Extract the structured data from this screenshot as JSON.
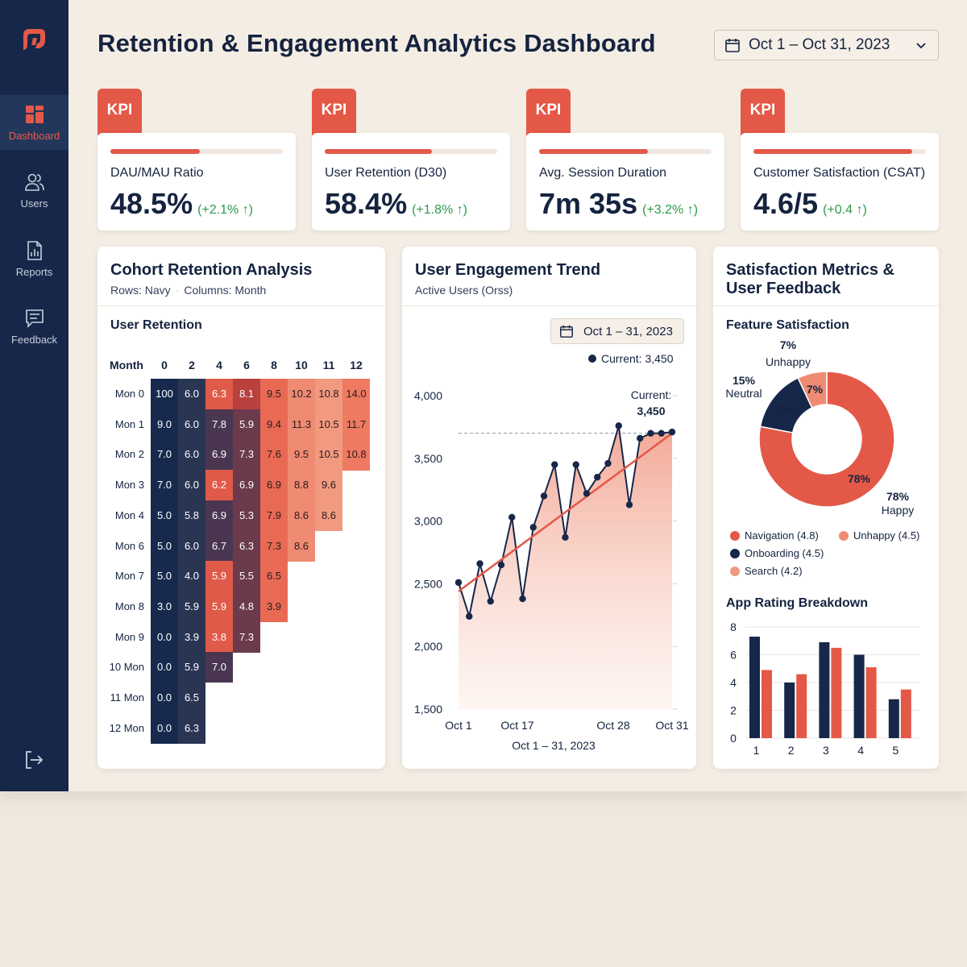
{
  "app": {
    "title": "Retention & Engagement Analytics Dashboard",
    "date_range": "Oct 1 – Oct 31, 2023"
  },
  "colors": {
    "navy": "#16274a",
    "coral": "#e45847",
    "salmon": "#ef8b73",
    "positive": "#2e9a4a"
  },
  "sidebar": {
    "logo_icon": "app-logo-icon",
    "items": [
      {
        "label": "Dashboard",
        "icon": "dashboard-icon",
        "active": true
      },
      {
        "label": "Users",
        "icon": "users-icon",
        "active": false
      },
      {
        "label": "Reports",
        "icon": "reports-icon",
        "active": false
      },
      {
        "label": "Feedback",
        "icon": "feedback-icon",
        "active": false
      }
    ],
    "logout_icon": "logout-icon"
  },
  "kpis": [
    {
      "tag": "KPI",
      "label": "DAU/MAU Ratio",
      "value": "48.5%",
      "delta": "(+2.1% ↑)",
      "progress": 0.52
    },
    {
      "tag": "KPI",
      "label": "User Retention (D30)",
      "value": "58.4%",
      "delta": "(+1.8% ↑)",
      "progress": 0.62
    },
    {
      "tag": "KPI",
      "label": "Avg. Session Duration",
      "value": "7m 35s",
      "delta": "(+3.2% ↑)",
      "progress": 0.63
    },
    {
      "tag": "KPI",
      "label": "Customer Satisfaction (CSAT)",
      "value": "4.6/5",
      "delta": "(+0.4 ↑)",
      "progress": 0.92
    }
  ],
  "cohort": {
    "title": "Cohort Retention Analysis",
    "sub_rows": "Rows: Navy",
    "sub_sep": "·",
    "sub_cols": "Columns: Month",
    "section_title": "User Retention",
    "corner_label": "Month",
    "columns": [
      "0",
      "2",
      "4",
      "6",
      "8",
      "10",
      "11",
      "12"
    ],
    "rows": [
      {
        "label": "Mon 0",
        "values": [
          "100",
          "6.0",
          "6.3",
          "8.1",
          "9.5",
          "10.2",
          "10.8",
          "14.0"
        ]
      },
      {
        "label": "Mon 1",
        "values": [
          "9.0",
          "6.0",
          "7.8",
          "5.9",
          "9.4",
          "11.3",
          "10.5",
          "11.7"
        ]
      },
      {
        "label": "Mon 2",
        "values": [
          "7.0",
          "6.0",
          "6.9",
          "7.3",
          "7.6",
          "9.5",
          "10.5",
          "10.8"
        ]
      },
      {
        "label": "Mon 3",
        "values": [
          "7.0",
          "6.0",
          "6.2",
          "6.9",
          "6.9",
          "8.8",
          "9.6"
        ]
      },
      {
        "label": "Mon 4",
        "values": [
          "5.0",
          "5.8",
          "6.9",
          "5.3",
          "7.9",
          "8.6",
          "8.6"
        ]
      },
      {
        "label": "Mon 6",
        "values": [
          "5.0",
          "6.0",
          "6.7",
          "6.3",
          "7.3",
          "8.6"
        ]
      },
      {
        "label": "Mon 7",
        "values": [
          "5.0",
          "4.0",
          "5.9",
          "5.5",
          "6.5"
        ]
      },
      {
        "label": "Mon 8",
        "values": [
          "3.0",
          "5.9",
          "5.9",
          "4.8",
          "3.9"
        ]
      },
      {
        "label": "Mon 9",
        "values": [
          "0.0",
          "3.9",
          "3.8",
          "7.3"
        ]
      },
      {
        "label": "10 Mon",
        "values": [
          "0.0",
          "5.9",
          "7.0"
        ]
      },
      {
        "label": "11 Mon",
        "values": [
          "0.0",
          "6.5"
        ]
      },
      {
        "label": "12 Mon",
        "values": [
          "0.0",
          "6.3"
        ]
      }
    ]
  },
  "engagement": {
    "title": "User Engagement Trend",
    "subtitle": "Active Users (Orss)",
    "date_chip": "Oct 1 – 31, 2023",
    "legend": "Current: 3,450",
    "callout_label": "Current:",
    "callout_value": "3,450",
    "x_caption": "Oct 1 – 31, 2023"
  },
  "satisfaction": {
    "title_line1": "Satisfaction Metrics &",
    "title_line2": "User Feedback",
    "feature_title": "Feature Satisfaction",
    "labels": {
      "unhappy_pct": "7%",
      "unhappy": "Unhappy",
      "neutral_pct": "15%",
      "neutral": "Neutral",
      "happy_pct": "78%",
      "happy": "Happy",
      "inner_neutral": "15%",
      "inner_unhappy": "7%",
      "inner_happy": "78%"
    },
    "legend": [
      {
        "label": "Navigation (4.8)",
        "color": "#e45847"
      },
      {
        "label": "Unhappy (4.5)",
        "color": "#ef8b73"
      },
      {
        "label": "Onboarding (4.5)",
        "color": "#16274a"
      },
      {
        "label": "Search (4.2)",
        "color": "#ef9a80"
      }
    ],
    "rating_title": "App Rating Breakdown"
  },
  "chart_data": [
    {
      "type": "line",
      "title": "User Engagement Trend",
      "ylabel": "",
      "xlabel": "Oct 1 – 31, 2023",
      "ylim": [
        1500,
        4000
      ],
      "yticks": [
        1500,
        2000,
        2500,
        3000,
        3500,
        4000
      ],
      "ytick_labels": [
        "1,500",
        "2,000",
        "2,500",
        "3,000",
        "3,500",
        "4,000"
      ],
      "xtick_labels": [
        "Oct 1",
        "Oct 17",
        "Oct 28",
        "Oct 31"
      ],
      "xticks": [
        1,
        17,
        28,
        31
      ],
      "x": [
        1,
        2,
        3,
        4,
        5,
        6,
        7,
        8,
        9,
        10,
        11,
        12,
        13,
        14,
        15,
        16,
        17,
        18,
        19,
        20,
        21
      ],
      "series": [
        {
          "values": [
            2510,
            2240,
            2660,
            2360,
            2650,
            3030,
            2380,
            2950,
            3200,
            3450,
            2870,
            3450,
            3220,
            3350,
            3460,
            3760,
            3130,
            3660,
            3700,
            3700,
            3710
          ]
        }
      ],
      "trend": [
        2440,
        3700
      ],
      "reference_line": 3700,
      "area_fill": true,
      "grid": false
    },
    {
      "type": "pie",
      "title": "Feature Satisfaction",
      "labels": [
        "Happy",
        "Neutral",
        "Unhappy"
      ],
      "values": [
        78,
        15,
        7
      ],
      "colors": [
        "#e45847",
        "#16274a",
        "#ef8b73"
      ]
    },
    {
      "type": "bar",
      "title": "App Rating Breakdown",
      "categories": [
        "1",
        "2",
        "3",
        "4",
        "5"
      ],
      "ylim": [
        0,
        8
      ],
      "yticks": [
        0,
        2,
        4,
        6,
        8
      ],
      "series": [
        {
          "values": [
            7.3,
            4.0,
            6.9,
            6.0,
            2.8
          ],
          "color": "#16274a"
        },
        {
          "values": [
            4.9,
            4.6,
            6.5,
            5.1,
            3.5
          ],
          "color": "#e45847"
        }
      ],
      "grid": true
    }
  ]
}
